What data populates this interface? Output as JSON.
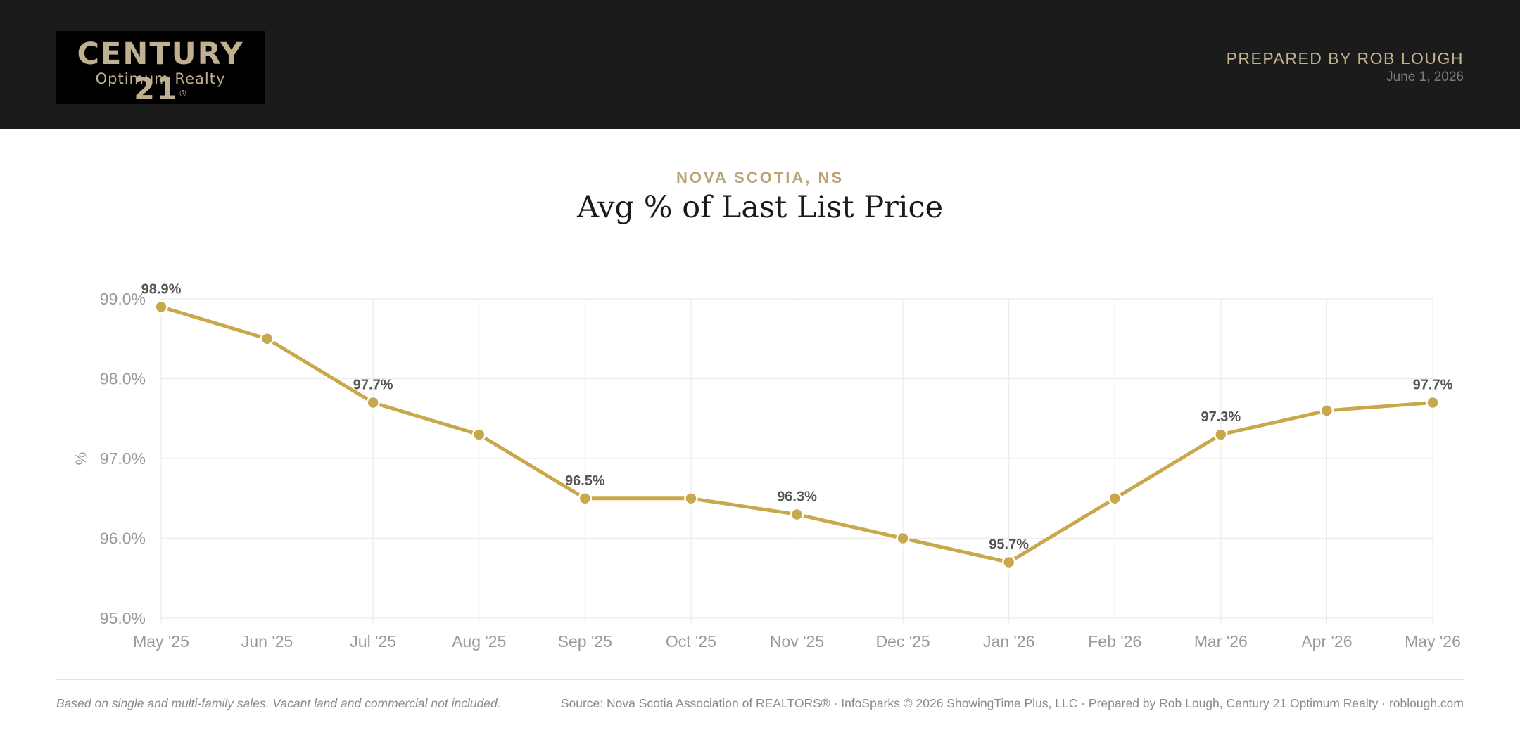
{
  "header": {
    "logo_main": "CENTURY 21",
    "logo_reg": "®",
    "logo_sub": "Optimum Realty",
    "prepared_by": "PREPARED BY ROB LOUGH",
    "date": "June 1, 2026"
  },
  "eyebrow": "NOVA SCOTIA, NS",
  "title": "Avg % of Last List Price",
  "colors": {
    "line": "#c9a84c",
    "header_bg": "#1b1b1b",
    "accent_text": "#c4b48e",
    "grid": "#ececec"
  },
  "chart_data": {
    "type": "line",
    "title": "Avg % of Last List Price",
    "ylabel": "%",
    "xlabel": "",
    "ylim": [
      95.0,
      99.0
    ],
    "yticks": [
      99.0,
      98.0,
      97.0,
      96.0,
      95.0
    ],
    "ytick_labels": [
      "99.0%",
      "98.0%",
      "97.0%",
      "96.0%",
      "95.0%"
    ],
    "grid": true,
    "categories": [
      "May '25",
      "Jun '25",
      "Jul '25",
      "Aug '25",
      "Sep '25",
      "Oct '25",
      "Nov '25",
      "Dec '25",
      "Jan '26",
      "Feb '26",
      "Mar '26",
      "Apr '26",
      "May '26"
    ],
    "series": [
      {
        "values": [
          98.9,
          98.5,
          97.7,
          97.3,
          96.5,
          96.5,
          96.3,
          96.0,
          95.7,
          96.5,
          97.3,
          97.6,
          97.7
        ]
      }
    ],
    "data_labels": [
      "98.9%",
      null,
      "97.7%",
      null,
      "96.5%",
      null,
      "96.3%",
      null,
      "95.7%",
      null,
      "97.3%",
      null,
      "97.7%"
    ]
  },
  "footer": {
    "note": "Based on single and multi-family sales. Vacant land and commercial not included.",
    "source": "Source: Nova Scotia Association of REALTORS® · InfoSparks © 2026 ShowingTime Plus, LLC · Prepared by Rob Lough, Century 21 Optimum Realty · roblough.com"
  }
}
